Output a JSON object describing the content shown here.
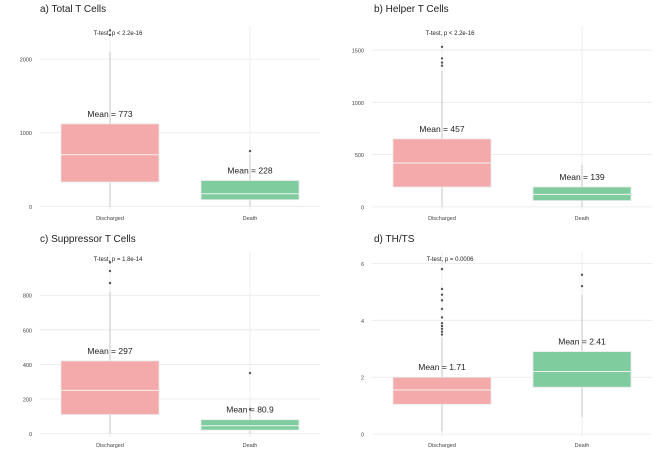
{
  "colors": {
    "discharged": "#f4aaaa",
    "death": "#7fcc9f",
    "grid": "#e8e8e8",
    "text": "#444444"
  },
  "chart_data": [
    {
      "type": "box",
      "title": "a) Total T Cells",
      "test_label": "T-test, p < 2.2e-16",
      "categories": [
        "Discharged",
        "Death"
      ],
      "ylim": [
        -50,
        2450
      ],
      "yticks": [
        0,
        1000,
        2000
      ],
      "boxes": [
        {
          "category": "Discharged",
          "q1": 330,
          "median": 700,
          "q3": 1120,
          "whisker_low": 0,
          "whisker_high": 2100,
          "mean": 773,
          "mean_label": "Mean = 773",
          "outliers": [
            2330,
            2390
          ]
        },
        {
          "category": "Death",
          "q1": 90,
          "median": 170,
          "q3": 350,
          "whisker_low": 0,
          "whisker_high": 700,
          "mean": 228,
          "mean_label": "Mean = 228",
          "outliers": [
            750
          ]
        }
      ]
    },
    {
      "type": "box",
      "title": "b) Helper T Cells",
      "test_label": "T-test, p < 2.2e-16",
      "categories": [
        "Discharged",
        "Death"
      ],
      "ylim": [
        -30,
        1730
      ],
      "yticks": [
        0,
        500,
        1000,
        1500
      ],
      "boxes": [
        {
          "category": "Discharged",
          "q1": 190,
          "median": 420,
          "q3": 650,
          "whisker_low": 0,
          "whisker_high": 1300,
          "mean": 457,
          "mean_label": "Mean = 457",
          "outliers": [
            1350,
            1380,
            1420,
            1530
          ]
        },
        {
          "category": "Death",
          "q1": 60,
          "median": 120,
          "q3": 190,
          "whisker_low": 0,
          "whisker_high": 400,
          "mean": 139,
          "mean_label": "Mean = 139",
          "outliers": []
        }
      ]
    },
    {
      "type": "box",
      "title": "c) Suppressor T Cells",
      "test_label": "T-test, p = 1.8e-14",
      "categories": [
        "Discharged",
        "Death"
      ],
      "ylim": [
        -20,
        1050
      ],
      "yticks": [
        0,
        200,
        400,
        600,
        800
      ],
      "boxes": [
        {
          "category": "Discharged",
          "q1": 110,
          "median": 250,
          "q3": 420,
          "whisker_low": 0,
          "whisker_high": 820,
          "mean": 297,
          "mean_label": "Mean = 297",
          "outliers": [
            870,
            940,
            990
          ]
        },
        {
          "category": "Death",
          "q1": 20,
          "median": 45,
          "q3": 80,
          "whisker_low": 0,
          "whisker_high": 160,
          "mean": 80.9,
          "mean_label": "Mean = 80.9",
          "outliers": [
            140,
            350
          ]
        }
      ]
    },
    {
      "type": "box",
      "title": "d) TH/TS",
      "test_label": "T-test, p = 0.0006",
      "categories": [
        "Discharged",
        "Death"
      ],
      "ylim": [
        -0.1,
        6.4
      ],
      "yticks": [
        0,
        2,
        4,
        6
      ],
      "boxes": [
        {
          "category": "Discharged",
          "q1": 1.05,
          "median": 1.55,
          "q3": 2.0,
          "whisker_low": 0.1,
          "whisker_high": 3.4,
          "mean": 1.71,
          "mean_label": "Mean = 1.71",
          "outliers": [
            3.5,
            3.6,
            3.7,
            3.8,
            3.9,
            4.1,
            4.4,
            4.7,
            4.9,
            5.1,
            5.8
          ]
        },
        {
          "category": "Death",
          "q1": 1.65,
          "median": 2.2,
          "q3": 2.9,
          "whisker_low": 0.6,
          "whisker_high": 4.9,
          "mean": 2.41,
          "mean_label": "Mean = 2.41",
          "outliers": [
            5.2,
            5.6
          ]
        }
      ]
    }
  ]
}
